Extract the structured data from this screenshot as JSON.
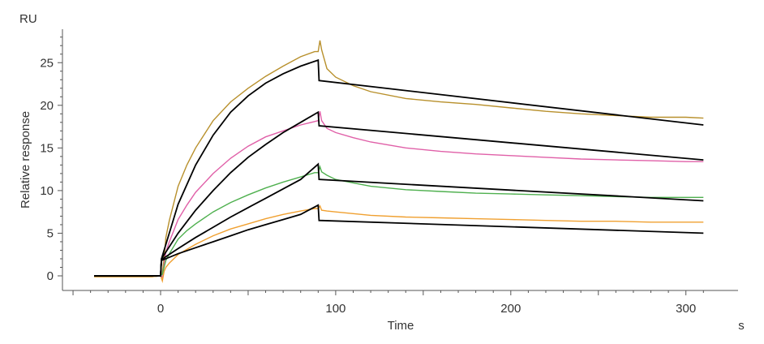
{
  "chart_data": {
    "type": "line",
    "y_unit": "RU",
    "x_unit": "s",
    "xlabel": "Time",
    "ylabel": "Relative response",
    "xlim": [
      -50,
      315
    ],
    "ylim": [
      -1.5,
      29
    ],
    "x_ticks": [
      0,
      100,
      200,
      300
    ],
    "y_ticks": [
      0,
      5,
      10,
      15,
      20,
      25
    ],
    "grid": false,
    "series": [
      {
        "color": "#b8902c",
        "x": [
          -38,
          -5,
          0,
          1,
          2,
          3,
          5,
          10,
          15,
          20,
          30,
          40,
          50,
          60,
          70,
          80,
          88,
          90,
          91,
          92,
          95,
          100,
          110,
          120,
          140,
          160,
          180,
          200,
          220,
          240,
          260,
          280,
          300,
          310
        ],
        "y": [
          -0.1,
          -0.1,
          0,
          0.3,
          2,
          4.5,
          6.5,
          10.5,
          13,
          15,
          18.2,
          20.4,
          22,
          23.4,
          24.6,
          25.7,
          26.3,
          26.3,
          27.6,
          26.5,
          24.3,
          23.3,
          22.3,
          21.6,
          20.8,
          20.4,
          20.1,
          19.7,
          19.3,
          19.0,
          18.8,
          18.6,
          18.6,
          18.5
        ]
      },
      {
        "color": "#e060a8",
        "x": [
          -38,
          -5,
          0,
          1,
          2,
          3,
          5,
          10,
          15,
          20,
          30,
          40,
          50,
          60,
          70,
          80,
          88,
          90,
          91,
          92,
          95,
          100,
          110,
          120,
          140,
          160,
          180,
          200,
          220,
          240,
          260,
          280,
          300,
          310
        ],
        "y": [
          -0.1,
          -0.1,
          0,
          -0.2,
          1.2,
          2.8,
          4.0,
          6.6,
          8.3,
          9.8,
          12.0,
          13.8,
          15.2,
          16.3,
          17.0,
          17.7,
          18.1,
          18.2,
          19.3,
          18.2,
          17.3,
          16.8,
          16.2,
          15.7,
          15.0,
          14.6,
          14.3,
          14.1,
          13.9,
          13.7,
          13.6,
          13.5,
          13.4,
          13.4
        ]
      },
      {
        "color": "#4fb04f",
        "x": [
          -38,
          -5,
          0,
          1,
          2,
          3,
          5,
          10,
          15,
          20,
          30,
          40,
          50,
          60,
          70,
          80,
          88,
          90,
          91,
          92,
          95,
          100,
          110,
          120,
          140,
          160,
          180,
          200,
          220,
          240,
          260,
          280,
          300,
          310
        ],
        "y": [
          -0.1,
          -0.1,
          0,
          0.2,
          1.0,
          1.8,
          2.6,
          4.3,
          5.3,
          6.1,
          7.5,
          8.6,
          9.5,
          10.3,
          11.0,
          11.6,
          12.1,
          12.1,
          12.8,
          12.2,
          11.8,
          11.3,
          10.9,
          10.5,
          10.1,
          9.9,
          9.7,
          9.6,
          9.5,
          9.4,
          9.3,
          9.2,
          9.2,
          9.2
        ]
      },
      {
        "color": "#f0a030",
        "x": [
          -38,
          -5,
          0,
          1,
          2,
          3,
          5,
          10,
          15,
          20,
          30,
          40,
          50,
          60,
          70,
          80,
          88,
          90,
          91,
          92,
          95,
          100,
          110,
          120,
          140,
          160,
          180,
          200,
          220,
          240,
          260,
          280,
          300,
          310
        ],
        "y": [
          -0.1,
          -0.1,
          0,
          -0.6,
          0.5,
          1.0,
          1.5,
          2.5,
          3.1,
          3.7,
          4.7,
          5.5,
          6.1,
          6.7,
          7.2,
          7.6,
          7.9,
          7.9,
          8.2,
          7.7,
          7.6,
          7.5,
          7.3,
          7.1,
          6.9,
          6.8,
          6.7,
          6.6,
          6.5,
          6.4,
          6.4,
          6.3,
          6.3,
          6.3
        ]
      }
    ],
    "fits": [
      {
        "color": "#000000",
        "x": [
          -38,
          -1,
          0,
          0.5,
          10,
          20,
          30,
          40,
          50,
          60,
          70,
          80,
          90,
          90.5,
          310
        ],
        "y": [
          0,
          0,
          0,
          2.0,
          8.4,
          13.0,
          16.5,
          19.2,
          21.1,
          22.6,
          23.7,
          24.6,
          25.3,
          22.9,
          17.7
        ]
      },
      {
        "color": "#000000",
        "x": [
          -38,
          -1,
          0,
          0.5,
          10,
          20,
          30,
          40,
          50,
          60,
          70,
          80,
          90,
          90.5,
          310
        ],
        "y": [
          0,
          0,
          0,
          2.0,
          5.0,
          7.7,
          10.0,
          12.1,
          13.9,
          15.4,
          16.8,
          18.0,
          19.2,
          17.6,
          13.6
        ]
      },
      {
        "color": "#000000",
        "x": [
          -38,
          -1,
          0,
          0.5,
          10,
          20,
          30,
          40,
          50,
          60,
          70,
          80,
          90,
          90.5,
          310
        ],
        "y": [
          0,
          0,
          0,
          1.9,
          3.2,
          4.5,
          5.7,
          6.9,
          8.0,
          9.1,
          10.2,
          11.3,
          13.1,
          11.3,
          8.8
        ]
      },
      {
        "color": "#000000",
        "x": [
          -38,
          -1,
          0,
          0.5,
          10,
          20,
          30,
          40,
          50,
          60,
          70,
          80,
          90,
          90.5,
          310
        ],
        "y": [
          0,
          0,
          0,
          1.8,
          2.6,
          3.3,
          4.0,
          4.7,
          5.4,
          6.0,
          6.6,
          7.2,
          8.3,
          6.5,
          5.0
        ]
      }
    ]
  }
}
